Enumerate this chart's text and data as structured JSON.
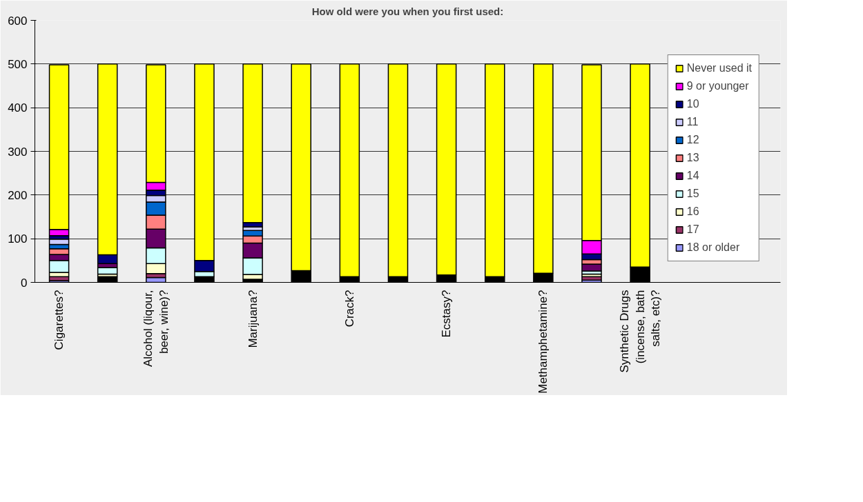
{
  "chart_data": {
    "type": "bar",
    "stacked": true,
    "title": "How old were you when you first used:",
    "categories": [
      "Cigarettes?",
      null,
      "Alcohol (liqour, beer, wine)?",
      null,
      "Marijuana?",
      null,
      "Crack?",
      null,
      "Ecstasy?",
      null,
      "Methamphetamine?",
      null,
      "Synthetic Drugs (incense, bath salts, etc)?"
    ],
    "series": [
      {
        "color": "#000000",
        "values": [
          null,
          13,
          null,
          13,
          7,
          27,
          13,
          13,
          17,
          13,
          21,
          null,
          35
        ]
      },
      {
        "name": "18 or older",
        "color": "#9999ff",
        "values": [
          4,
          0,
          11,
          0,
          0,
          0,
          0,
          0,
          0,
          0,
          0,
          5,
          0
        ]
      },
      {
        "name": "17",
        "color": "#993366",
        "values": [
          9,
          0,
          9,
          0,
          0,
          0,
          0,
          0,
          0,
          0,
          0,
          8,
          0
        ]
      },
      {
        "name": "16",
        "color": "#ffffcc",
        "values": [
          10,
          6,
          23,
          0,
          11,
          0,
          0,
          0,
          0,
          0,
          0,
          6,
          0
        ]
      },
      {
        "name": "15",
        "color": "#ccffff",
        "values": [
          27,
          15,
          36,
          12,
          38,
          0,
          0,
          0,
          0,
          0,
          0,
          7,
          0
        ]
      },
      {
        "name": "14",
        "color": "#660066",
        "values": [
          14,
          9,
          43,
          0,
          34,
          0,
          0,
          0,
          0,
          0,
          0,
          16,
          0
        ]
      },
      {
        "name": "13",
        "color": "#ff8080",
        "values": [
          13,
          0,
          32,
          0,
          16,
          0,
          0,
          0,
          0,
          0,
          0,
          10,
          0
        ]
      },
      {
        "name": "12",
        "color": "#0066cc",
        "values": [
          10,
          0,
          30,
          0,
          13,
          0,
          0,
          0,
          0,
          0,
          0,
          0,
          0
        ]
      },
      {
        "name": "11",
        "color": "#ccccff",
        "values": [
          12,
          0,
          15,
          0,
          8,
          0,
          0,
          0,
          0,
          0,
          0,
          0,
          0
        ]
      },
      {
        "name": "10",
        "color": "#000080",
        "values": [
          8,
          20,
          12,
          25,
          10,
          0,
          0,
          0,
          0,
          0,
          0,
          13,
          0
        ]
      },
      {
        "name": "9 or younger",
        "color": "#ff00ff",
        "values": [
          14,
          0,
          18,
          0,
          0,
          0,
          0,
          0,
          0,
          0,
          0,
          31,
          0
        ]
      },
      {
        "name": "Never used it",
        "color": "#ffff00",
        "values": [
          377,
          437,
          269,
          450,
          363,
          473,
          487,
          487,
          483,
          487,
          479,
          402,
          465
        ]
      }
    ],
    "ylim": [
      0,
      600
    ],
    "yticks": [
      0,
      100,
      200,
      300,
      400,
      500,
      600
    ],
    "grid": "y",
    "legend": "right"
  }
}
